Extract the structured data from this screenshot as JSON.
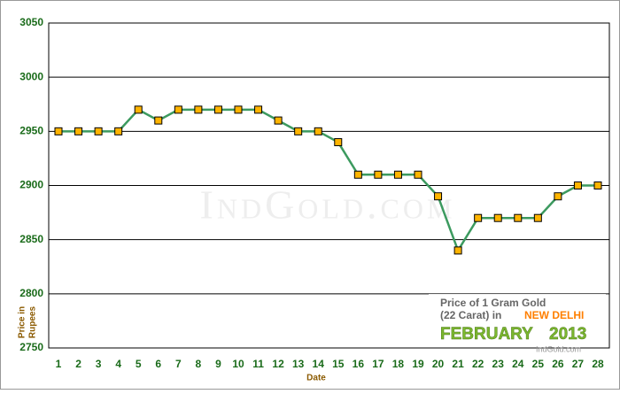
{
  "chart_data": {
    "type": "line",
    "xlabel": "Date",
    "ylabel_lines": [
      "Price in",
      "Rupees"
    ],
    "categories": [
      "1",
      "2",
      "3",
      "4",
      "5",
      "6",
      "7",
      "8",
      "9",
      "10",
      "11",
      "12",
      "13",
      "14",
      "15",
      "16",
      "17",
      "18",
      "19",
      "20",
      "21",
      "22",
      "23",
      "24",
      "25",
      "26",
      "27",
      "28"
    ],
    "series": [
      {
        "color": "#3c9a5f",
        "marker_color": "#ffb400",
        "values": [
          2950,
          2950,
          2950,
          2950,
          2970,
          2960,
          2970,
          2970,
          2970,
          2970,
          2970,
          2960,
          2950,
          2950,
          2940,
          2910,
          2910,
          2910,
          2910,
          2890,
          2840,
          2870,
          2870,
          2870,
          2870,
          2890,
          2900,
          2900
        ]
      }
    ],
    "ylim": [
      2750,
      3050
    ],
    "yticks": [
      2750,
      2800,
      2850,
      2900,
      2950,
      3000,
      3050
    ],
    "grid": true,
    "watermark": "IndGold.com",
    "info_box": {
      "line1": "Price of 1 Gram Gold",
      "line2": "(22 Carat) in",
      "city": "NEW DELHI",
      "month": "FEBRUARY",
      "year": "2013",
      "footer": "IndGold.com"
    }
  }
}
